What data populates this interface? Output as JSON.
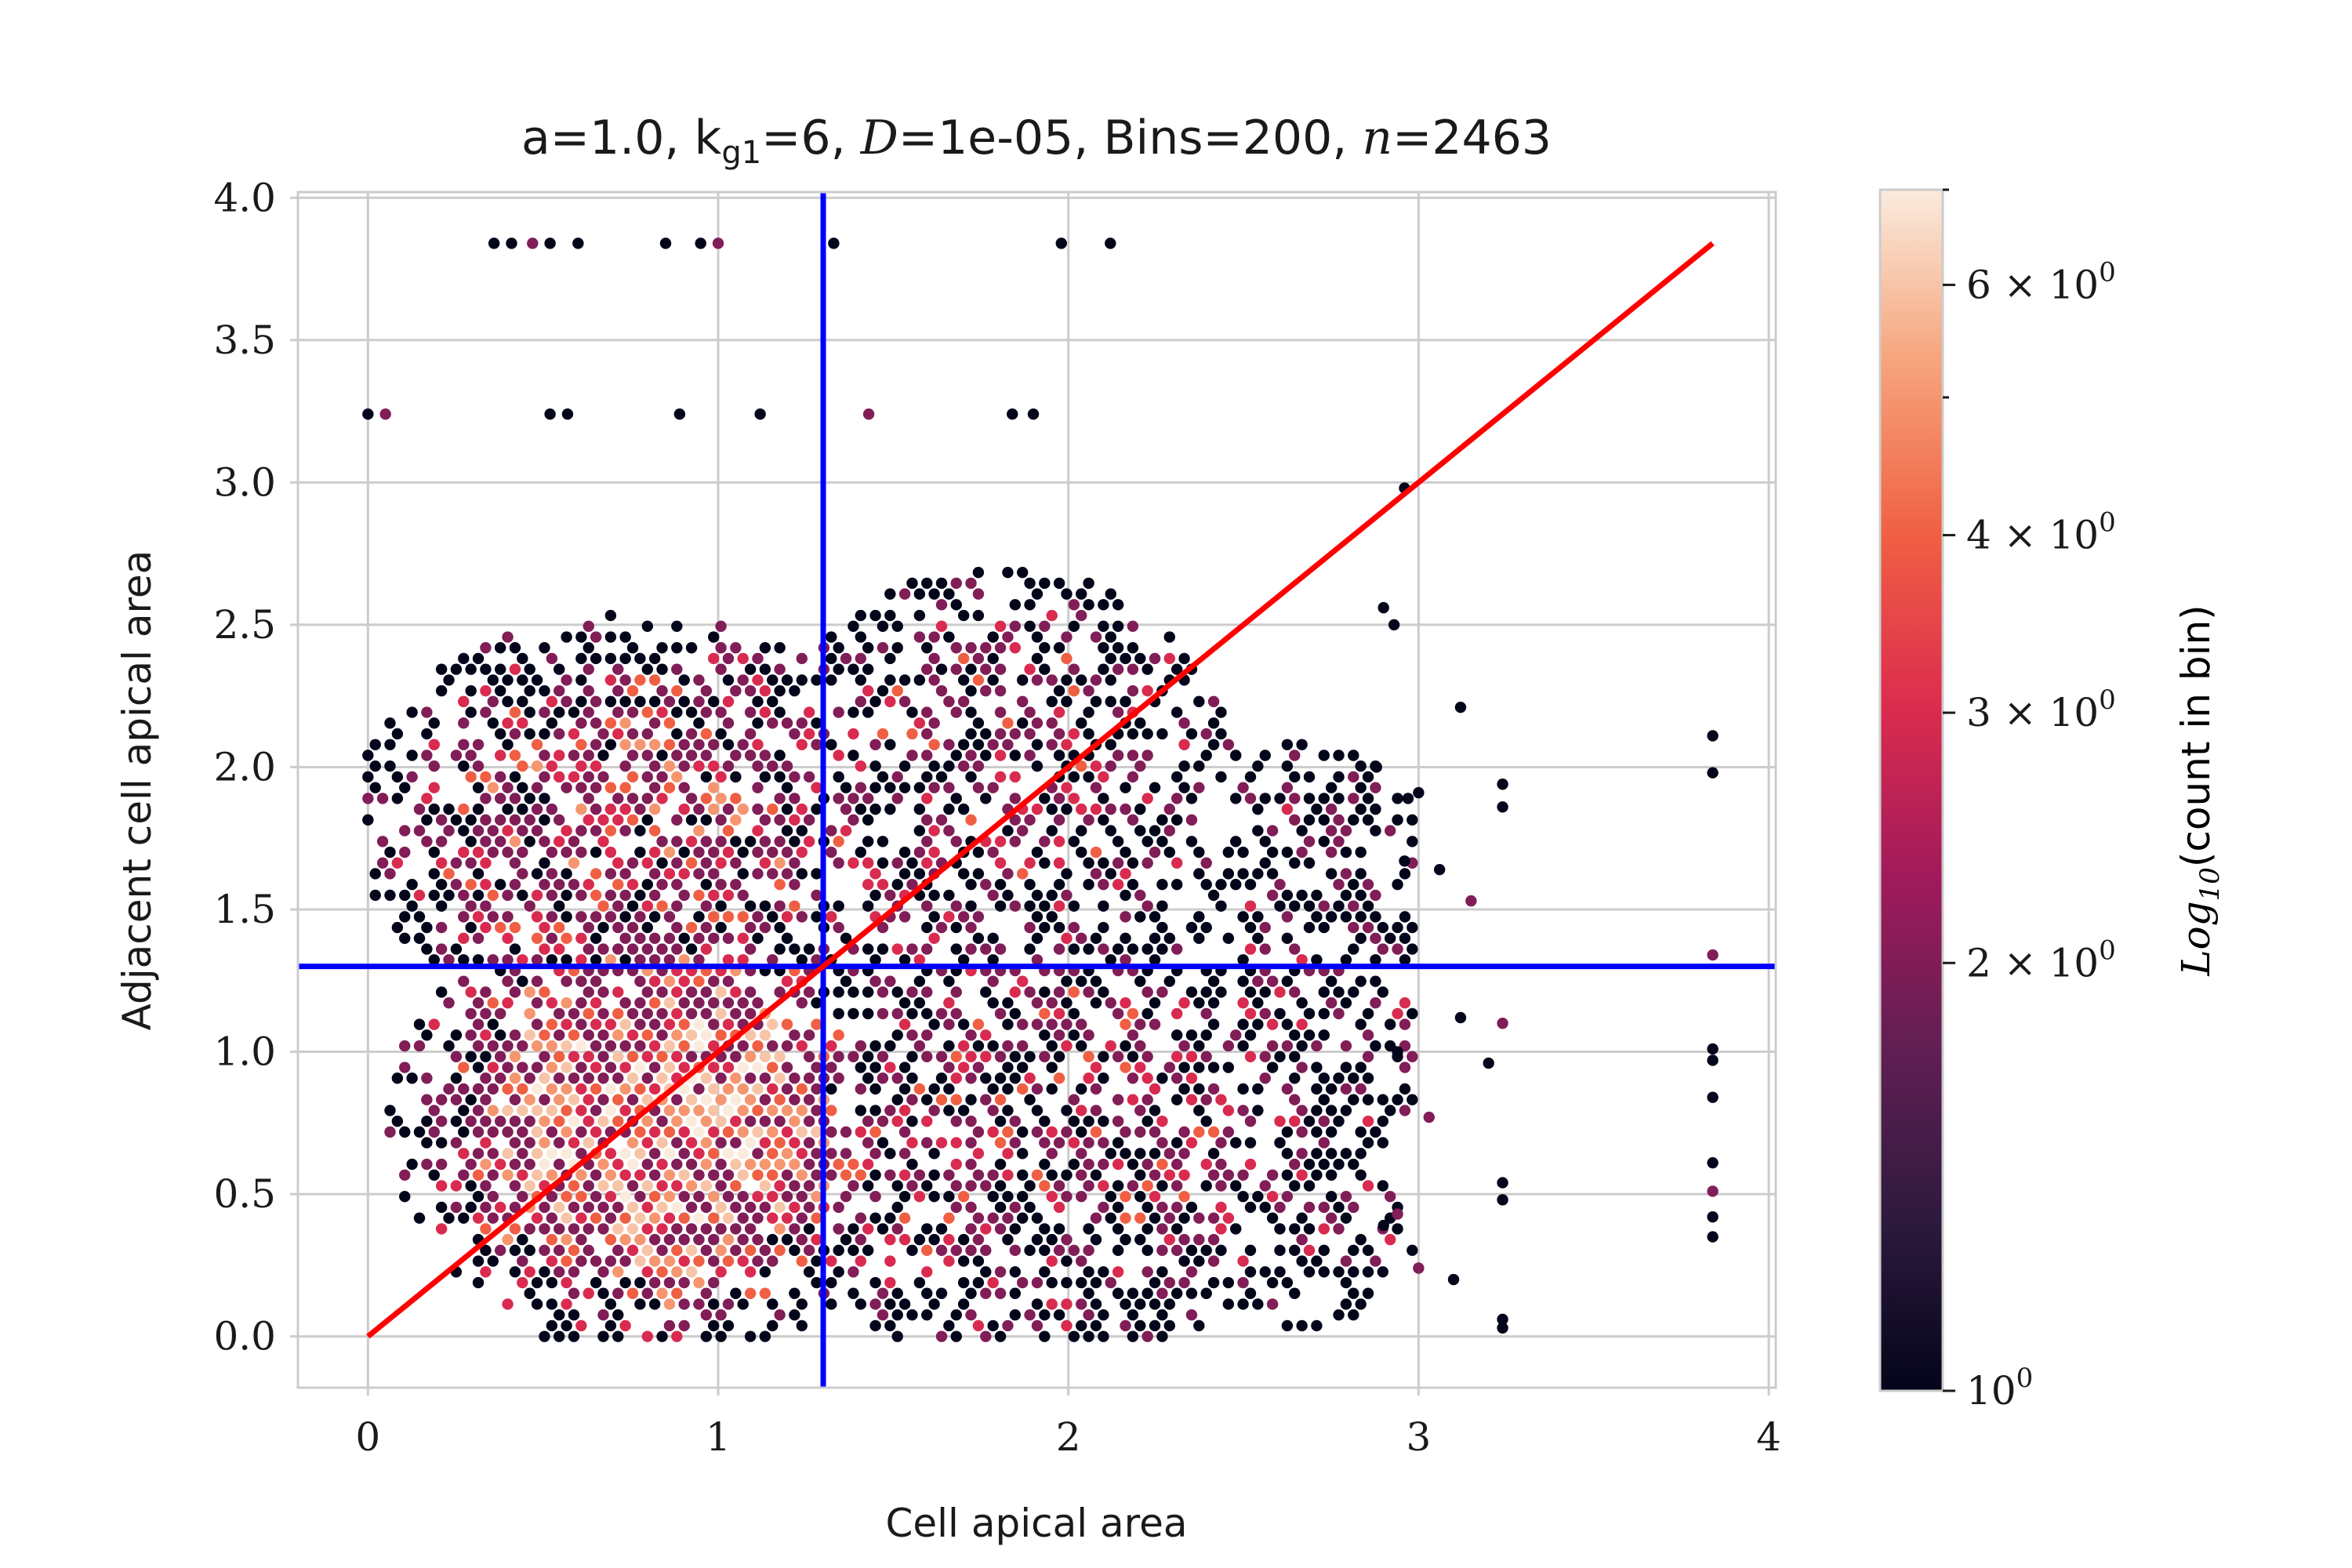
{
  "chart_data": {
    "type": "heatmap",
    "subtype": "hexbin",
    "title": "a=1.0, k_g1=6, D=1e-05, Bins=200, n=2463",
    "title_parts": {
      "a": "a=1.0, k",
      "sub": "g1",
      "b": "=6, ",
      "D": "D",
      "c": "=1e-05, Bins=200, ",
      "n": "n",
      "d": "=2463"
    },
    "xlabel": "Cell apical area",
    "ylabel": "Adjacent cell apical area",
    "xlim": [
      -0.2,
      4.02
    ],
    "ylim": [
      -0.18,
      4.02
    ],
    "xticks": [
      "0",
      "1",
      "2",
      "3",
      "4"
    ],
    "xtick_values": [
      0,
      1,
      2,
      3,
      4
    ],
    "yticks": [
      "0.0",
      "0.5",
      "1.0",
      "1.5",
      "2.0",
      "2.5",
      "3.0",
      "3.5",
      "4.0"
    ],
    "ytick_values": [
      0.0,
      0.5,
      1.0,
      1.5,
      2.0,
      2.5,
      3.0,
      3.5,
      4.0
    ],
    "grid": true,
    "reference_lines": {
      "vertical": {
        "x": 1.3,
        "color": "#0000ff"
      },
      "horizontal": {
        "y": 1.3,
        "color": "#0000ff"
      },
      "diagonal": {
        "from": [
          0,
          0
        ],
        "to": [
          3.84,
          3.84
        ],
        "color": "#ff0000"
      }
    },
    "colorbar": {
      "label_prefix": "Log",
      "label_sub": "10",
      "label_suffix": "(count in bin)",
      "scale": "log",
      "range": [
        1,
        7
      ],
      "ticks": [
        {
          "value": 1,
          "mantissa": "",
          "base": "10",
          "exp": "0"
        },
        {
          "value": 2,
          "mantissa": "2 × ",
          "base": "10",
          "exp": "0"
        },
        {
          "value": 3,
          "mantissa": "3 × ",
          "base": "10",
          "exp": "0"
        },
        {
          "value": 4,
          "mantissa": "4 × ",
          "base": "10",
          "exp": "0"
        },
        {
          "value": 6,
          "mantissa": "6 × ",
          "base": "10",
          "exp": "0"
        }
      ],
      "minor_ticks": [
        5,
        7
      ],
      "colormap": [
        "#03051a",
        "#2e1a3e",
        "#611f53",
        "#a11a5b",
        "#dc2c4e",
        "#f06043",
        "#f6a47c",
        "#faebdd"
      ]
    },
    "density_regions": [
      {
        "x": [
          0.35,
          1.3
        ],
        "y": [
          0.2,
          1.3
        ],
        "count": 4.5
      },
      {
        "x": [
          0.2,
          1.3
        ],
        "y": [
          1.3,
          2.3
        ],
        "count": 2.8
      },
      {
        "x": [
          1.3,
          2.5
        ],
        "y": [
          0.1,
          1.3
        ],
        "count": 2.2
      },
      {
        "x": [
          1.3,
          2.3
        ],
        "y": [
          1.3,
          2.5
        ],
        "count": 2.0
      },
      {
        "x": [
          2.4,
          3.0
        ],
        "y": [
          0.1,
          2.0
        ],
        "count": 1.3
      }
    ],
    "stray_points": [
      [
        0.36,
        3.84
      ],
      [
        0.41,
        3.84
      ],
      [
        0.47,
        3.84
      ],
      [
        0.52,
        3.84
      ],
      [
        0.6,
        3.84
      ],
      [
        0.85,
        3.84
      ],
      [
        0.95,
        3.84
      ],
      [
        1.0,
        3.84
      ],
      [
        1.33,
        3.84
      ],
      [
        1.98,
        3.84
      ],
      [
        2.12,
        3.84
      ],
      [
        0.0,
        3.24
      ],
      [
        0.05,
        3.24
      ],
      [
        0.52,
        3.24
      ],
      [
        0.57,
        3.24
      ],
      [
        0.89,
        3.24
      ],
      [
        1.12,
        3.24
      ],
      [
        1.43,
        3.24
      ],
      [
        1.84,
        3.24
      ],
      [
        1.9,
        3.24
      ],
      [
        3.84,
        2.11
      ],
      [
        3.84,
        1.98
      ],
      [
        3.84,
        1.34
      ],
      [
        3.84,
        1.01
      ],
      [
        3.84,
        0.97
      ],
      [
        3.84,
        0.84
      ],
      [
        3.84,
        0.61
      ],
      [
        3.84,
        0.51
      ],
      [
        3.84,
        0.42
      ],
      [
        3.84,
        0.35
      ],
      [
        3.24,
        1.94
      ],
      [
        3.24,
        1.86
      ],
      [
        3.24,
        1.1
      ],
      [
        3.24,
        0.54
      ],
      [
        3.24,
        0.48
      ],
      [
        3.24,
        0.06
      ],
      [
        3.24,
        0.03
      ],
      [
        3.15,
        1.53
      ],
      [
        3.12,
        1.12
      ],
      [
        3.12,
        2.21
      ],
      [
        3.06,
        1.64
      ],
      [
        3.0,
        1.91
      ],
      [
        3.0,
        0.24
      ],
      [
        2.96,
        2.98
      ],
      [
        2.97,
        1.89
      ],
      [
        2.96,
        1.67
      ],
      [
        2.94,
        1.0
      ],
      [
        2.94,
        0.43
      ],
      [
        2.9,
        0.39
      ],
      [
        2.93,
        2.5
      ],
      [
        2.9,
        2.56
      ],
      [
        2.88,
        2.0
      ],
      [
        3.03,
        0.77
      ],
      [
        3.1,
        0.2
      ],
      [
        3.2,
        0.96
      ]
    ]
  }
}
